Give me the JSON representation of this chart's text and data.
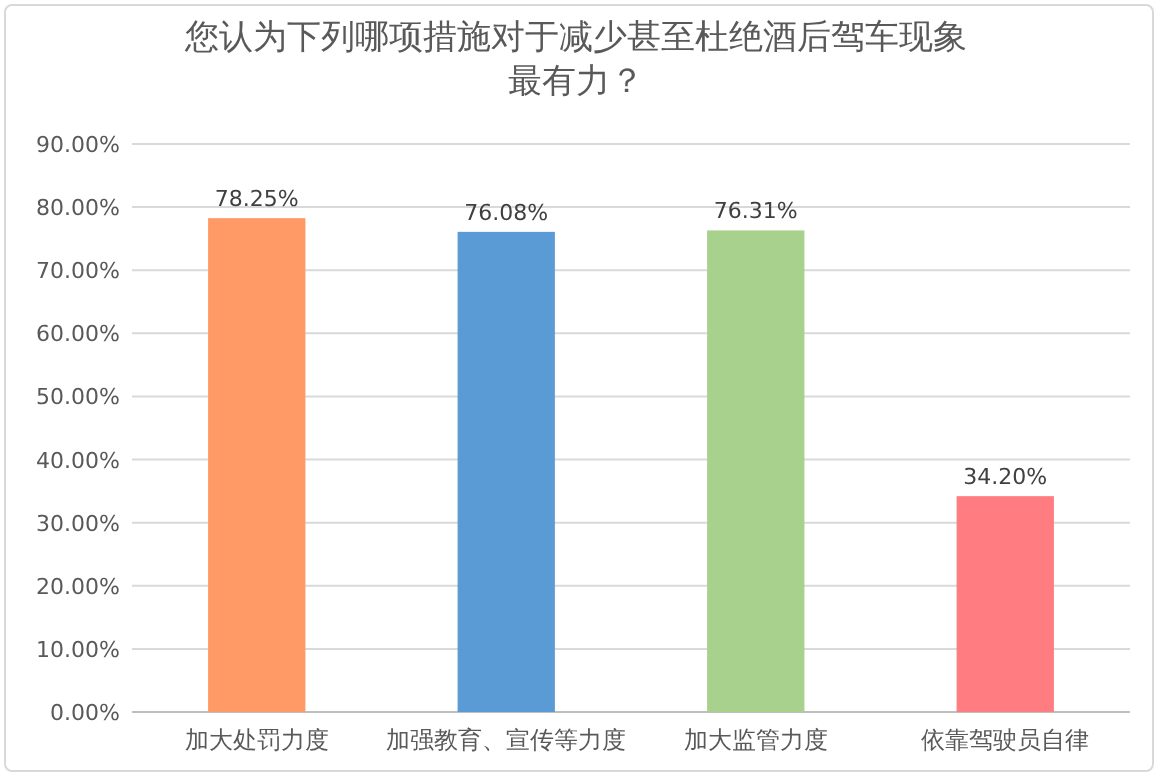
{
  "chart_data": {
    "type": "bar",
    "title": "您认为下列哪项措施对于减少甚至杜绝酒后驾车现象最有力？",
    "categories": [
      "加大处罚力度",
      "加强教育、宣传等力度",
      "加大监管力度",
      "依靠驾驶员自律"
    ],
    "values": [
      78.25,
      76.08,
      76.31,
      34.2
    ],
    "colors": [
      "#ff9966",
      "#5b9bd5",
      "#a9d18e",
      "#ff7c80"
    ],
    "value_labels": [
      "78.25%",
      "76.08%",
      "76.31%",
      "34.20%"
    ],
    "ylim": [
      0,
      90
    ],
    "yticks": [
      {
        "value": 0,
        "label": "0.00%"
      },
      {
        "value": 10,
        "label": "10.00%"
      },
      {
        "value": 20,
        "label": "20.00%"
      },
      {
        "value": 30,
        "label": "30.00%"
      },
      {
        "value": 40,
        "label": "40.00%"
      },
      {
        "value": 50,
        "label": "50.00%"
      },
      {
        "value": 60,
        "label": "60.00%"
      },
      {
        "value": 70,
        "label": "70.00%"
      },
      {
        "value": 80,
        "label": "80.00%"
      },
      {
        "value": 90,
        "label": "90.00%"
      }
    ],
    "grid": "y"
  }
}
